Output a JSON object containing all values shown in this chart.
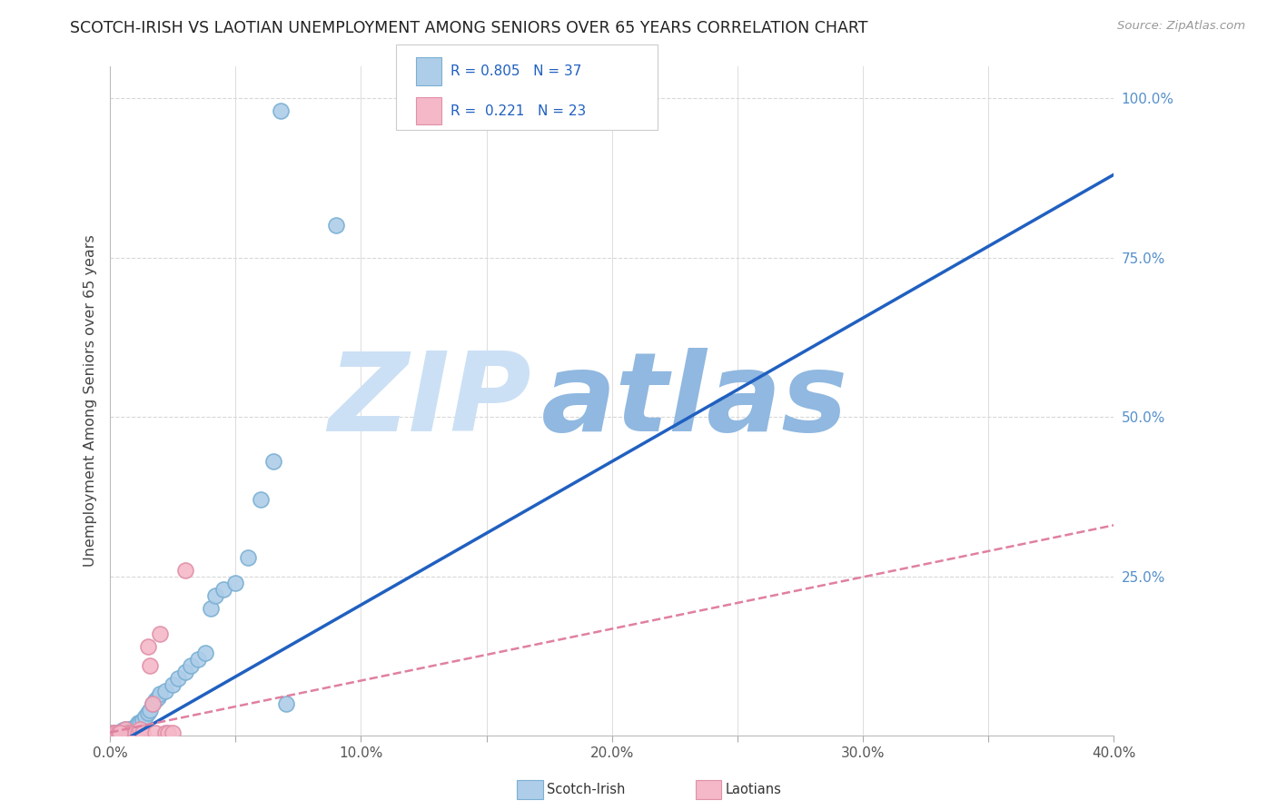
{
  "title": "SCOTCH-IRISH VS LAOTIAN UNEMPLOYMENT AMONG SENIORS OVER 65 YEARS CORRELATION CHART",
  "source": "Source: ZipAtlas.com",
  "ylabel": "Unemployment Among Seniors over 65 years",
  "xmin": 0.0,
  "xmax": 0.4,
  "ymin": 0.0,
  "ymax": 1.05,
  "xtick_labels": [
    "0.0%",
    "",
    "10.0%",
    "",
    "20.0%",
    "",
    "30.0%",
    "",
    "40.0%"
  ],
  "xtick_values": [
    0.0,
    0.05,
    0.1,
    0.15,
    0.2,
    0.25,
    0.3,
    0.35,
    0.4
  ],
  "ytick_labels": [
    "25.0%",
    "50.0%",
    "75.0%",
    "100.0%"
  ],
  "ytick_values": [
    0.25,
    0.5,
    0.75,
    1.0
  ],
  "background_color": "#ffffff",
  "grid_color": "#d8d8d8",
  "scotch_irish_color": "#aecde8",
  "scotch_irish_edge": "#7ab0d4",
  "laotian_color": "#f4b8c8",
  "laotian_edge": "#e090a8",
  "scotch_irish_R": 0.805,
  "scotch_irish_N": 37,
  "laotian_R": 0.221,
  "laotian_N": 23,
  "scotch_irish_line_color": "#2060c0",
  "laotian_line_color": "#e080a0",
  "watermark_zip": "ZIP",
  "watermark_atlas": "atlas",
  "watermark_color_zip": "#cce0f5",
  "watermark_color_atlas": "#90b8e0",
  "scotch_irish_points": [
    [
      0.001,
      0.005
    ],
    [
      0.002,
      0.005
    ],
    [
      0.003,
      0.005
    ],
    [
      0.004,
      0.005
    ],
    [
      0.005,
      0.008
    ],
    [
      0.006,
      0.01
    ],
    [
      0.007,
      0.008
    ],
    [
      0.008,
      0.01
    ],
    [
      0.009,
      0.012
    ],
    [
      0.01,
      0.015
    ],
    [
      0.011,
      0.02
    ],
    [
      0.012,
      0.02
    ],
    [
      0.013,
      0.025
    ],
    [
      0.014,
      0.03
    ],
    [
      0.015,
      0.035
    ],
    [
      0.016,
      0.04
    ],
    [
      0.017,
      0.05
    ],
    [
      0.018,
      0.055
    ],
    [
      0.019,
      0.06
    ],
    [
      0.02,
      0.065
    ],
    [
      0.022,
      0.07
    ],
    [
      0.025,
      0.08
    ],
    [
      0.027,
      0.09
    ],
    [
      0.03,
      0.1
    ],
    [
      0.032,
      0.11
    ],
    [
      0.035,
      0.12
    ],
    [
      0.038,
      0.13
    ],
    [
      0.04,
      0.2
    ],
    [
      0.042,
      0.22
    ],
    [
      0.045,
      0.23
    ],
    [
      0.05,
      0.24
    ],
    [
      0.055,
      0.28
    ],
    [
      0.06,
      0.37
    ],
    [
      0.065,
      0.43
    ],
    [
      0.07,
      0.05
    ],
    [
      0.09,
      0.8
    ],
    [
      0.068,
      0.98
    ]
  ],
  "laotian_points": [
    [
      0.001,
      0.005
    ],
    [
      0.002,
      0.005
    ],
    [
      0.003,
      0.005
    ],
    [
      0.004,
      0.005
    ],
    [
      0.005,
      0.005
    ],
    [
      0.006,
      0.01
    ],
    [
      0.007,
      0.005
    ],
    [
      0.008,
      0.005
    ],
    [
      0.009,
      0.005
    ],
    [
      0.01,
      0.005
    ],
    [
      0.011,
      0.005
    ],
    [
      0.012,
      0.01
    ],
    [
      0.013,
      0.005
    ],
    [
      0.015,
      0.14
    ],
    [
      0.016,
      0.11
    ],
    [
      0.017,
      0.05
    ],
    [
      0.018,
      0.005
    ],
    [
      0.02,
      0.16
    ],
    [
      0.022,
      0.005
    ],
    [
      0.023,
      0.005
    ],
    [
      0.025,
      0.005
    ],
    [
      0.03,
      0.26
    ],
    [
      0.004,
      0.005
    ]
  ]
}
